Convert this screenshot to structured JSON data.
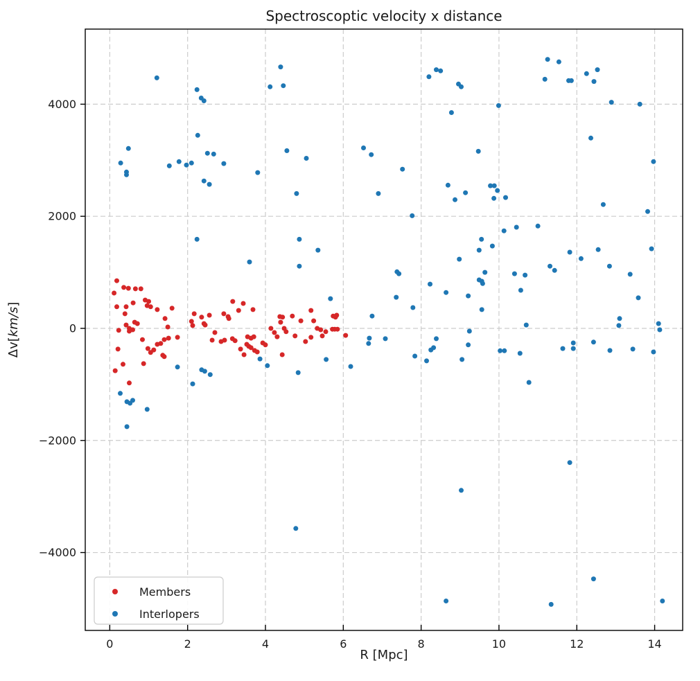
{
  "page": {
    "background": "#ffffff"
  },
  "chart_data": {
    "type": "scatter",
    "title": "Spectroscoptic velocity x distance",
    "xlabel": "R [Mpc]",
    "ylabel": {
      "prefix": "Δv[",
      "italic": "km/s",
      "suffix": "]"
    },
    "xlim": [
      -0.63,
      14.72
    ],
    "ylim": [
      -5390,
      5340
    ],
    "grid": {
      "color": "#cccccc",
      "dash": "7,4",
      "on": true
    },
    "xticks": [
      {
        "v": 0,
        "label": "0"
      },
      {
        "v": 2,
        "label": "2"
      },
      {
        "v": 4,
        "label": "4"
      },
      {
        "v": 6,
        "label": "6"
      },
      {
        "v": 8,
        "label": "8"
      },
      {
        "v": 10,
        "label": "10"
      },
      {
        "v": 12,
        "label": "12"
      },
      {
        "v": 14,
        "label": "14"
      }
    ],
    "yticks": [
      {
        "v": -4000,
        "label": "−4000"
      },
      {
        "v": -2000,
        "label": "−2000"
      },
      {
        "v": 0,
        "label": "0"
      },
      {
        "v": 2000,
        "label": "2000"
      },
      {
        "v": 4000,
        "label": "4000"
      }
    ],
    "legend": {
      "position": "lower-left",
      "entries": [
        {
          "label": "Members",
          "color": "#d62728"
        },
        {
          "label": "Interlopers",
          "color": "#1f77b4"
        }
      ]
    },
    "series": [
      {
        "name": "Members",
        "color": "#d62728",
        "marker_radius": 3.5,
        "points": [
          [
            0.11,
            630
          ],
          [
            0.14,
            -755
          ],
          [
            0.18,
            850
          ],
          [
            0.18,
            385
          ],
          [
            0.21,
            -370
          ],
          [
            0.23,
            -35
          ],
          [
            0.34,
            -640
          ],
          [
            0.36,
            730
          ],
          [
            0.39,
            260
          ],
          [
            0.42,
            385
          ],
          [
            0.42,
            60
          ],
          [
            0.48,
            715
          ],
          [
            0.5,
            0
          ],
          [
            0.5,
            -50
          ],
          [
            0.5,
            -975
          ],
          [
            0.59,
            -25
          ],
          [
            0.6,
            455
          ],
          [
            0.64,
            110
          ],
          [
            0.66,
            705
          ],
          [
            0.71,
            85
          ],
          [
            0.8,
            705
          ],
          [
            0.84,
            -200
          ],
          [
            0.87,
            -630
          ],
          [
            0.91,
            505
          ],
          [
            0.96,
            405
          ],
          [
            0.98,
            -360
          ],
          [
            1.0,
            480
          ],
          [
            1.05,
            385
          ],
          [
            1.05,
            -430
          ],
          [
            1.13,
            -385
          ],
          [
            1.22,
            335
          ],
          [
            1.22,
            -285
          ],
          [
            1.31,
            -270
          ],
          [
            1.36,
            -480
          ],
          [
            1.4,
            -200
          ],
          [
            1.4,
            -505
          ],
          [
            1.42,
            175
          ],
          [
            1.49,
            25
          ],
          [
            1.51,
            -175
          ],
          [
            1.6,
            360
          ],
          [
            1.74,
            -160
          ],
          [
            2.1,
            125
          ],
          [
            2.13,
            50
          ],
          [
            2.17,
            260
          ],
          [
            2.36,
            200
          ],
          [
            2.42,
            85
          ],
          [
            2.45,
            60
          ],
          [
            2.56,
            235
          ],
          [
            2.63,
            -210
          ],
          [
            2.7,
            -75
          ],
          [
            2.86,
            -235
          ],
          [
            2.93,
            260
          ],
          [
            2.95,
            -210
          ],
          [
            3.04,
            210
          ],
          [
            3.06,
            175
          ],
          [
            3.15,
            -185
          ],
          [
            3.16,
            480
          ],
          [
            3.22,
            -220
          ],
          [
            3.31,
            320
          ],
          [
            3.36,
            -370
          ],
          [
            3.43,
            445
          ],
          [
            3.45,
            -470
          ],
          [
            3.52,
            -285
          ],
          [
            3.54,
            -150
          ],
          [
            3.57,
            -320
          ],
          [
            3.63,
            -175
          ],
          [
            3.63,
            -345
          ],
          [
            3.68,
            335
          ],
          [
            3.7,
            -150
          ],
          [
            3.72,
            -395
          ],
          [
            3.79,
            -420
          ],
          [
            3.93,
            -260
          ],
          [
            4.0,
            -295
          ],
          [
            4.14,
            0
          ],
          [
            4.23,
            -75
          ],
          [
            4.3,
            -150
          ],
          [
            4.37,
            210
          ],
          [
            4.39,
            110
          ],
          [
            4.43,
            -470
          ],
          [
            4.44,
            200
          ],
          [
            4.48,
            0
          ],
          [
            4.53,
            -60
          ],
          [
            4.69,
            220
          ],
          [
            4.76,
            -135
          ],
          [
            4.91,
            135
          ],
          [
            5.03,
            -235
          ],
          [
            5.17,
            320
          ],
          [
            5.17,
            -160
          ],
          [
            5.24,
            135
          ],
          [
            5.33,
            0
          ],
          [
            5.42,
            -25
          ],
          [
            5.46,
            -135
          ],
          [
            5.55,
            -60
          ],
          [
            5.74,
            220
          ],
          [
            5.8,
            200
          ],
          [
            5.83,
            235
          ],
          [
            5.72,
            -15
          ],
          [
            5.78,
            -15
          ],
          [
            5.85,
            -15
          ],
          [
            6.06,
            -125
          ]
        ]
      },
      {
        "name": "Interlopers",
        "color": "#1f77b4",
        "marker_radius": 3.5,
        "points": [
          [
            1.21,
            4470
          ],
          [
            2.24,
            4260
          ],
          [
            2.35,
            4110
          ],
          [
            2.42,
            4060
          ],
          [
            4.12,
            4310
          ],
          [
            4.39,
            4665
          ],
          [
            4.46,
            4330
          ],
          [
            2.26,
            3445
          ],
          [
            0.48,
            3210
          ],
          [
            0.28,
            2950
          ],
          [
            0.43,
            2790
          ],
          [
            0.43,
            2740
          ],
          [
            1.53,
            2900
          ],
          [
            1.78,
            2975
          ],
          [
            1.97,
            2915
          ],
          [
            2.1,
            2950
          ],
          [
            2.51,
            3125
          ],
          [
            2.67,
            3110
          ],
          [
            2.93,
            2940
          ],
          [
            2.42,
            2630
          ],
          [
            2.56,
            2570
          ],
          [
            3.8,
            2780
          ],
          [
            4.55,
            3170
          ],
          [
            5.05,
            3035
          ],
          [
            6.52,
            3220
          ],
          [
            6.72,
            3100
          ],
          [
            7.52,
            2840
          ],
          [
            7.77,
            2010
          ],
          [
            8.2,
            4490
          ],
          [
            8.39,
            4615
          ],
          [
            8.5,
            4595
          ],
          [
            8.78,
            3850
          ],
          [
            8.96,
            4360
          ],
          [
            9.03,
            4310
          ],
          [
            9.47,
            3160
          ],
          [
            4.8,
            2405
          ],
          [
            6.9,
            2405
          ],
          [
            8.69,
            2555
          ],
          [
            8.87,
            2295
          ],
          [
            9.14,
            2420
          ],
          [
            9.78,
            2545
          ],
          [
            9.88,
            2545
          ],
          [
            9.96,
            2460
          ],
          [
            9.87,
            2320
          ],
          [
            10.17,
            2335
          ],
          [
            9.99,
            3975
          ],
          [
            11.18,
            4445
          ],
          [
            11.25,
            4800
          ],
          [
            11.54,
            4755
          ],
          [
            11.79,
            4420
          ],
          [
            11.86,
            4420
          ],
          [
            12.25,
            4545
          ],
          [
            12.44,
            4405
          ],
          [
            12.53,
            4615
          ],
          [
            12.89,
            4035
          ],
          [
            13.62,
            4000
          ],
          [
            12.36,
            3395
          ],
          [
            13.97,
            2975
          ],
          [
            12.68,
            2210
          ],
          [
            13.82,
            2085
          ],
          [
            10.13,
            1740
          ],
          [
            10.45,
            1805
          ],
          [
            11.0,
            1825
          ],
          [
            2.24,
            1590
          ],
          [
            3.59,
            1185
          ],
          [
            4.87,
            1590
          ],
          [
            5.35,
            1395
          ],
          [
            4.87,
            1110
          ],
          [
            5.67,
            530
          ],
          [
            6.74,
            220
          ],
          [
            7.36,
            555
          ],
          [
            7.38,
            1010
          ],
          [
            7.43,
            975
          ],
          [
            7.79,
            370
          ],
          [
            8.23,
            790
          ],
          [
            8.64,
            640
          ],
          [
            8.98,
            1235
          ],
          [
            9.21,
            580
          ],
          [
            9.49,
            1395
          ],
          [
            9.55,
            1590
          ],
          [
            9.56,
            840
          ],
          [
            9.49,
            865
          ],
          [
            9.58,
            800
          ],
          [
            9.64,
            1000
          ],
          [
            9.56,
            335
          ],
          [
            9.83,
            1470
          ],
          [
            10.4,
            975
          ],
          [
            10.67,
            950
          ],
          [
            10.56,
            680
          ],
          [
            11.31,
            1110
          ],
          [
            11.43,
            1035
          ],
          [
            11.82,
            1360
          ],
          [
            12.11,
            1245
          ],
          [
            12.55,
            1405
          ],
          [
            12.84,
            1110
          ],
          [
            13.37,
            965
          ],
          [
            13.92,
            1420
          ],
          [
            13.58,
            545
          ],
          [
            13.1,
            175
          ],
          [
            13.08,
            50
          ],
          [
            10.7,
            60
          ],
          [
            14.1,
            85
          ],
          [
            14.13,
            -25
          ],
          [
            1.74,
            -690
          ],
          [
            2.36,
            -740
          ],
          [
            2.44,
            -765
          ],
          [
            2.58,
            -825
          ],
          [
            2.13,
            -990
          ],
          [
            0.27,
            -1160
          ],
          [
            0.44,
            -1310
          ],
          [
            0.52,
            -1335
          ],
          [
            0.59,
            -1285
          ],
          [
            0.96,
            -1445
          ],
          [
            0.44,
            -1755
          ],
          [
            3.86,
            -545
          ],
          [
            4.05,
            -665
          ],
          [
            4.84,
            -790
          ],
          [
            5.56,
            -555
          ],
          [
            6.19,
            -680
          ],
          [
            6.65,
            -270
          ],
          [
            6.67,
            -175
          ],
          [
            7.08,
            -185
          ],
          [
            7.84,
            -495
          ],
          [
            8.14,
            -580
          ],
          [
            8.25,
            -385
          ],
          [
            8.32,
            -345
          ],
          [
            8.39,
            -185
          ],
          [
            9.05,
            -555
          ],
          [
            9.21,
            -295
          ],
          [
            9.24,
            -50
          ],
          [
            10.03,
            -400
          ],
          [
            10.14,
            -400
          ],
          [
            10.54,
            -445
          ],
          [
            10.77,
            -965
          ],
          [
            11.64,
            -360
          ],
          [
            11.91,
            -260
          ],
          [
            11.91,
            -360
          ],
          [
            12.43,
            -245
          ],
          [
            12.85,
            -395
          ],
          [
            13.44,
            -370
          ],
          [
            13.97,
            -420
          ],
          [
            4.78,
            -3570
          ],
          [
            9.03,
            -2890
          ],
          [
            8.64,
            -4865
          ],
          [
            11.82,
            -2395
          ],
          [
            12.43,
            -4470
          ],
          [
            11.34,
            -4925
          ],
          [
            14.2,
            -4865
          ]
        ]
      }
    ]
  }
}
